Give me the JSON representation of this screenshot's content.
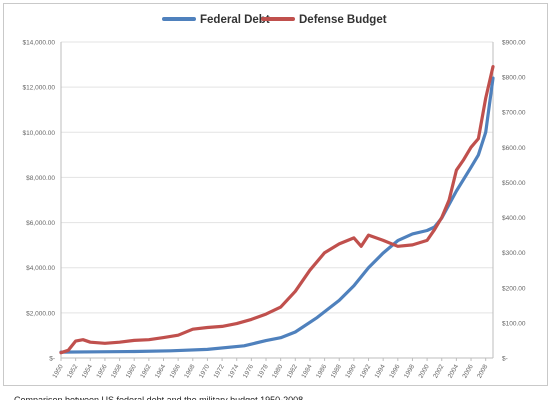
{
  "chart_data": {
    "type": "line",
    "title": "",
    "xlabel": "",
    "ylabel_left": "",
    "ylabel_right": "",
    "xlim": [
      1950,
      2009
    ],
    "ylim_left": [
      0,
      14000
    ],
    "ylim_right": [
      0,
      900
    ],
    "grid": true,
    "legend_position": "top",
    "y_ticks_left": [
      "$-",
      "$2,000.00",
      "$4,000.00",
      "$6,000.00",
      "$8,000.00",
      "$10,000.00",
      "$12,000.00",
      "$14,000.00"
    ],
    "y_ticks_right": [
      "$-",
      "$100.00",
      "$200.00",
      "$300.00",
      "$400.00",
      "$500.00",
      "$600.00",
      "$700.00",
      "$800.00",
      "$900.00"
    ],
    "x_ticks": [
      "1950",
      "1952",
      "1954",
      "1956",
      "1958",
      "1960",
      "1962",
      "1964",
      "1966",
      "1968",
      "1970",
      "1972",
      "1974",
      "1976",
      "1978",
      "1980",
      "1982",
      "1984",
      "1986",
      "1988",
      "1990",
      "1992",
      "1994",
      "1996",
      "1998",
      "2000",
      "2002",
      "2004",
      "2006",
      "2008"
    ],
    "series": [
      {
        "name": "Federal Debt",
        "axis": "left",
        "color": "#4f81bd",
        "x": [
          1950,
          1955,
          1960,
          1965,
          1970,
          1975,
          1978,
          1980,
          1982,
          1985,
          1988,
          1990,
          1992,
          1994,
          1996,
          1998,
          2000,
          2001,
          2002,
          2004,
          2006,
          2007,
          2008,
          2009
        ],
        "y": [
          260,
          275,
          290,
          320,
          380,
          540,
          770,
          900,
          1150,
          1800,
          2550,
          3200,
          4000,
          4650,
          5200,
          5500,
          5650,
          5800,
          6200,
          7400,
          8450,
          9000,
          10000,
          12400
        ]
      },
      {
        "name": "Defense Budget",
        "axis": "right",
        "color": "#c0504d",
        "x": [
          1950,
          1951,
          1952,
          1953,
          1954,
          1956,
          1958,
          1960,
          1962,
          1964,
          1966,
          1968,
          1970,
          1972,
          1974,
          1976,
          1978,
          1980,
          1982,
          1984,
          1986,
          1988,
          1990,
          1991,
          1992,
          1994,
          1996,
          1998,
          2000,
          2001,
          2002,
          2003,
          2004,
          2005,
          2006,
          2007,
          2008,
          2009
        ],
        "y": [
          15,
          22,
          48,
          52,
          45,
          42,
          45,
          50,
          52,
          58,
          65,
          82,
          87,
          90,
          98,
          110,
          125,
          145,
          190,
          250,
          300,
          325,
          342,
          318,
          350,
          335,
          318,
          322,
          335,
          365,
          400,
          450,
          535,
          565,
          600,
          625,
          740,
          830
        ]
      }
    ]
  },
  "caption": "Comparison between US federal debt and the military budget 1950-2008"
}
